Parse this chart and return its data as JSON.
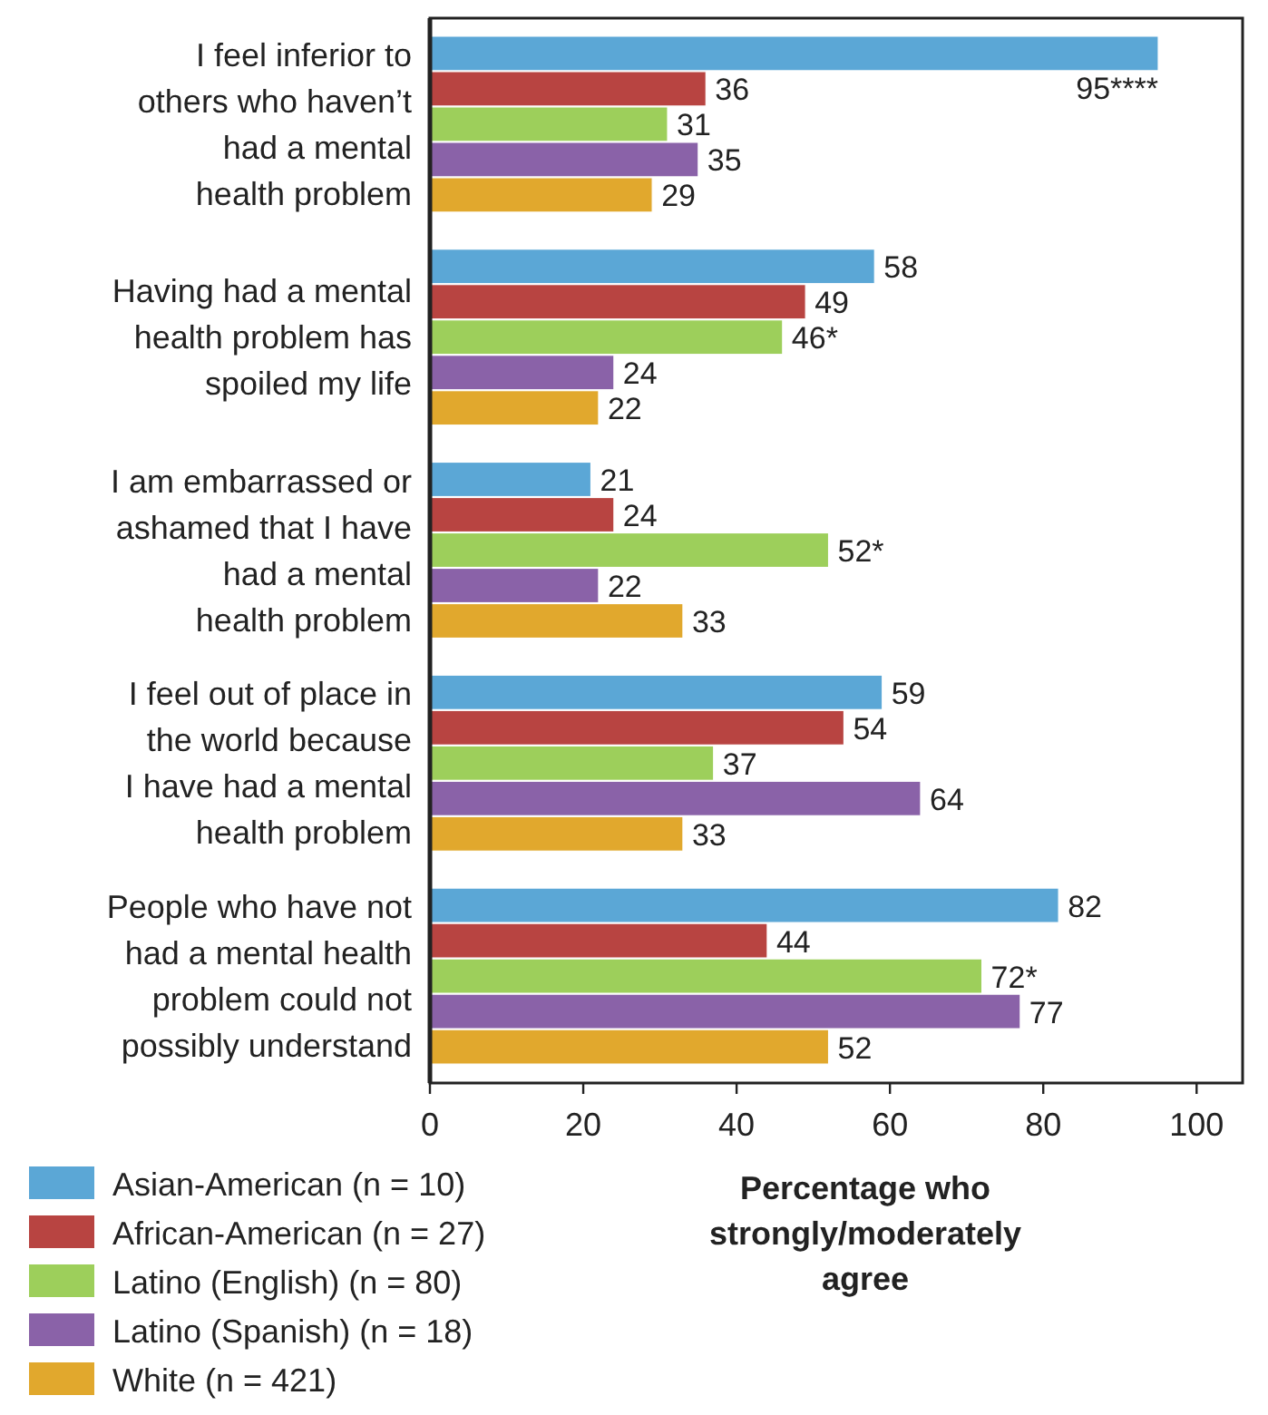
{
  "chart_data": {
    "type": "bar",
    "orientation": "horizontal",
    "categories": [
      "I feel inferior to\nothers who haven’t\nhad a mental\nhealth problem",
      "Having had a mental\nhealth problem has\nspoiled my life",
      "I am embarrassed or\nashamed that I have\nhad a mental\nhealth problem",
      "I feel out of place in\nthe world because\nI have had a mental\nhealth problem",
      "People who have not\nhad a mental health\nproblem could not\npossibly understand"
    ],
    "series": [
      {
        "name": "Asian-American (n = 10)",
        "color": "#5ba7d6",
        "values": [
          95,
          58,
          21,
          59,
          82
        ],
        "value_labels": [
          "95****",
          "58",
          "21",
          "59",
          "82"
        ]
      },
      {
        "name": "African-American (n = 27)",
        "color": "#b84441",
        "values": [
          36,
          49,
          24,
          54,
          44
        ],
        "value_labels": [
          "36",
          "49",
          "24",
          "54",
          "44"
        ]
      },
      {
        "name": "Latino (English) (n = 80)",
        "color": "#9dcf5b",
        "values": [
          31,
          46,
          52,
          37,
          72
        ],
        "value_labels": [
          "31",
          "46*",
          "52*",
          "37",
          "72*"
        ]
      },
      {
        "name": "Latino (Spanish) (n = 18)",
        "color": "#8a62a8",
        "values": [
          35,
          24,
          22,
          64,
          77
        ],
        "value_labels": [
          "35",
          "24",
          "22",
          "64",
          "77"
        ]
      },
      {
        "name": "White (n = 421)",
        "color": "#e1a82d",
        "values": [
          29,
          22,
          33,
          33,
          52
        ],
        "value_labels": [
          "29",
          "22",
          "33",
          "33",
          "52"
        ]
      }
    ],
    "xlim": [
      0,
      106
    ],
    "xticks": [
      0,
      20,
      40,
      60,
      80,
      100
    ],
    "xlabel": "Percentage who\nstrongly/moderately\nagree",
    "legend": "bottom left",
    "grid": false
  }
}
